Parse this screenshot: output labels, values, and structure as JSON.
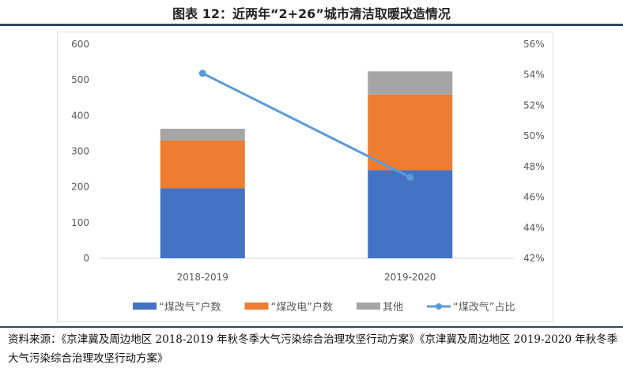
{
  "title": "图表 12：近两年“2+26”城市清洁取暖改造情况",
  "source": "资料来源：《京津冀及周边地区 2018-2019 年秋冬季大气污染综合治理攻坚行动方案》《京津冀及周边地区 2019-2020 年秋冬季大气污染综合治理攻坚行动方案》",
  "chart_data": {
    "type": "bar",
    "stacked": true,
    "categories": [
      "2018-2019",
      "2019-2020"
    ],
    "series": [
      {
        "name": "“煤改气”户数",
        "type": "bar",
        "color": "#4472c4",
        "values": [
          196,
          247
        ]
      },
      {
        "name": "“煤改电”户数",
        "type": "bar",
        "color": "#ed7d31",
        "values": [
          134,
          212
        ]
      },
      {
        "name": "其他",
        "type": "bar",
        "color": "#a5a5a5",
        "values": [
          33,
          65
        ]
      },
      {
        "name": "“煤改气”占比",
        "type": "line",
        "axis": "right",
        "color": "#5b9bd5",
        "values": [
          54.1,
          47.3
        ]
      }
    ],
    "ylim": [
      0,
      600
    ],
    "yticks": [
      "0",
      "100",
      "200",
      "300",
      "400",
      "500",
      "600"
    ],
    "y2lim": [
      42,
      56
    ],
    "y2ticks": [
      "42%",
      "44%",
      "46%",
      "48%",
      "50%",
      "52%",
      "54%",
      "56%"
    ],
    "grid": false,
    "legend": "bottom"
  }
}
